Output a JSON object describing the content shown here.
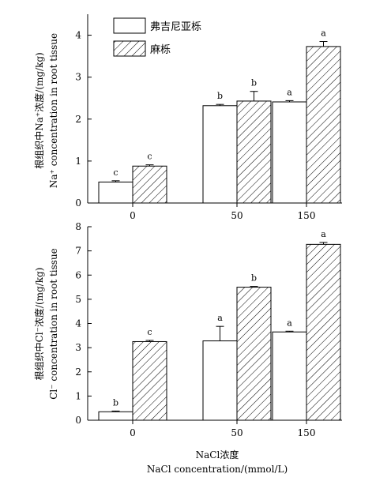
{
  "chart_data": [
    {
      "type": "bar",
      "ylabel_cn": "根组织中Na⁺浓度/(mg/kg)",
      "ylabel_en": "Na⁺ concentration in root tissue",
      "categories": [
        "0",
        "50",
        "150"
      ],
      "ylim": [
        0,
        4.5
      ],
      "yticks": [
        "0",
        "1",
        "2",
        "3",
        "4"
      ],
      "series": [
        {
          "name": "弗吉尼亚栎",
          "values": [
            0.5,
            2.32,
            2.41
          ],
          "errors": [
            0.03,
            0.03,
            0.03
          ],
          "labels": [
            "c",
            "b",
            "a"
          ],
          "fill": "white"
        },
        {
          "name": "麻栎",
          "values": [
            0.88,
            2.43,
            3.73
          ],
          "errors": [
            0.03,
            0.23,
            0.12
          ],
          "labels": [
            "c",
            "b",
            "a"
          ],
          "fill": "hatch"
        }
      ],
      "legend": "top-left"
    },
    {
      "type": "bar",
      "ylabel_cn": "根组织中Cl⁻浓度/(mg/kg)",
      "ylabel_en": "Cl⁻ concentration in root tissue",
      "categories": [
        "0",
        "50",
        "150"
      ],
      "ylim": [
        0,
        8
      ],
      "yticks": [
        "0",
        "1",
        "2",
        "3",
        "4",
        "5",
        "6",
        "7",
        "8"
      ],
      "series": [
        {
          "name": "弗吉尼亚栎",
          "values": [
            0.35,
            3.28,
            3.65
          ],
          "errors": [
            0.03,
            0.6,
            0.03
          ],
          "labels": [
            "b",
            "a",
            "a"
          ],
          "fill": "white"
        },
        {
          "name": "麻栎",
          "values": [
            3.25,
            5.5,
            7.27
          ],
          "errors": [
            0.05,
            0.03,
            0.08
          ],
          "labels": [
            "c",
            "b",
            "a"
          ],
          "fill": "hatch"
        }
      ]
    }
  ],
  "xlabel_cn": "NaCl浓度",
  "xlabel_en": "NaCl concentration/(mmol/L)"
}
